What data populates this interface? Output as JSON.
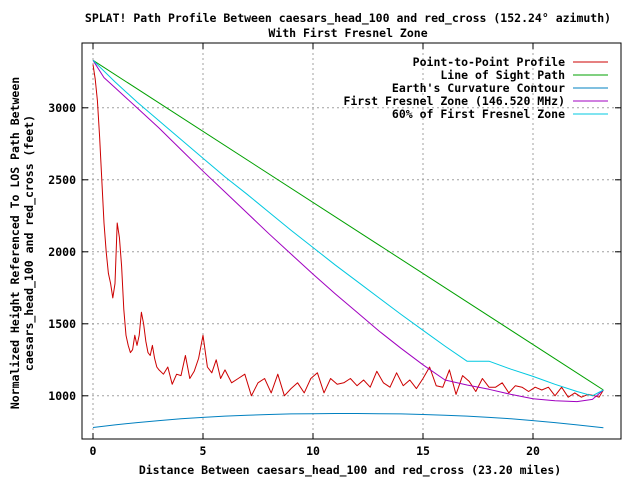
{
  "chart_data": {
    "type": "line",
    "title": "SPLAT! Path Profile Between caesars_head_100 and red_cross (152.24° azimuth)",
    "subtitle": "With First Fresnel Zone",
    "xlabel": "Distance Between caesars_head_100 and red_cross (23.20 miles)",
    "ylabel_lines": [
      "Normalized Height Referenced To LOS Path Between",
      "caesars_head_100 and red_cross (feet)"
    ],
    "xlim": [
      -0.5,
      24
    ],
    "ylim": [
      700,
      3450
    ],
    "x_ticks": [
      0,
      5,
      10,
      15,
      20
    ],
    "y_ticks": [
      1000,
      1500,
      2000,
      2500,
      3000
    ],
    "x_tick_labels": [
      "0",
      "5",
      "10",
      "15",
      "20"
    ],
    "y_tick_labels": [
      "1000",
      "1500",
      "2000",
      "2500",
      "3000"
    ],
    "grid": true,
    "legend_position": "top-right",
    "series": [
      {
        "name": "Point-to-Point Profile",
        "color": "#cc0000",
        "x": [
          0,
          0.1,
          0.2,
          0.3,
          0.4,
          0.5,
          0.6,
          0.7,
          0.8,
          0.9,
          1.0,
          1.1,
          1.2,
          1.3,
          1.4,
          1.5,
          1.6,
          1.7,
          1.8,
          1.9,
          2.0,
          2.1,
          2.2,
          2.3,
          2.4,
          2.5,
          2.6,
          2.7,
          2.8,
          2.9,
          3.0,
          3.2,
          3.4,
          3.6,
          3.8,
          4.0,
          4.2,
          4.4,
          4.6,
          4.8,
          5.0,
          5.2,
          5.4,
          5.6,
          5.8,
          6.0,
          6.3,
          6.6,
          6.9,
          7.2,
          7.5,
          7.8,
          8.1,
          8.4,
          8.7,
          9.0,
          9.3,
          9.6,
          9.9,
          10.2,
          10.5,
          10.8,
          11.1,
          11.4,
          11.7,
          12.0,
          12.3,
          12.6,
          12.9,
          13.2,
          13.5,
          13.8,
          14.1,
          14.4,
          14.7,
          15.0,
          15.3,
          15.6,
          15.9,
          16.2,
          16.5,
          16.8,
          17.1,
          17.4,
          17.7,
          18.0,
          18.3,
          18.6,
          18.9,
          19.2,
          19.5,
          19.8,
          20.1,
          20.4,
          20.7,
          21.0,
          21.3,
          21.6,
          21.9,
          22.2,
          22.5,
          22.8,
          23.0,
          23.2
        ],
        "values": [
          3300,
          3200,
          3050,
          2800,
          2500,
          2200,
          2000,
          1850,
          1780,
          1680,
          1780,
          2200,
          2100,
          1900,
          1600,
          1420,
          1350,
          1300,
          1320,
          1420,
          1350,
          1420,
          1580,
          1500,
          1380,
          1300,
          1280,
          1350,
          1260,
          1200,
          1180,
          1150,
          1200,
          1080,
          1150,
          1140,
          1280,
          1120,
          1170,
          1260,
          1420,
          1200,
          1160,
          1250,
          1120,
          1180,
          1090,
          1120,
          1150,
          1000,
          1090,
          1120,
          1020,
          1150,
          1000,
          1050,
          1090,
          1020,
          1120,
          1160,
          1020,
          1120,
          1080,
          1090,
          1120,
          1070,
          1110,
          1060,
          1170,
          1090,
          1060,
          1160,
          1070,
          1110,
          1050,
          1120,
          1200,
          1070,
          1060,
          1180,
          1010,
          1140,
          1100,
          1030,
          1120,
          1060,
          1060,
          1090,
          1020,
          1070,
          1060,
          1030,
          1060,
          1040,
          1060,
          1000,
          1060,
          990,
          1020,
          990,
          1010,
          1000,
          990,
          1040
        ]
      },
      {
        "name": "Line of Sight Path",
        "color": "#00a000",
        "x": [
          0,
          23.2
        ],
        "values": [
          3330,
          1040
        ]
      },
      {
        "name": "Earth's Curvature Contour",
        "color": "#0080c0",
        "x": [
          0,
          1,
          2,
          3,
          4,
          5,
          6,
          7,
          8,
          9,
          10,
          11,
          11.6,
          12,
          13,
          14,
          15,
          16,
          17,
          18,
          19,
          20,
          21,
          22,
          23.2
        ],
        "values": [
          780,
          798,
          814,
          828,
          840,
          850,
          859,
          865,
          870,
          874,
          876,
          877,
          877,
          877,
          876,
          874,
          870,
          865,
          859,
          850,
          840,
          828,
          814,
          798,
          778
        ]
      },
      {
        "name": "First Fresnel Zone (146.520 MHz)",
        "color": "#a000c0",
        "x": [
          0,
          0.5,
          1,
          2,
          3,
          4,
          5,
          6,
          7,
          8,
          9,
          10,
          11,
          12,
          13,
          14,
          15,
          16,
          17,
          18,
          19,
          20,
          21,
          22,
          22.7,
          23.2
        ],
        "values": [
          3330,
          3210,
          3140,
          3000,
          2860,
          2710,
          2560,
          2415,
          2270,
          2125,
          1985,
          1845,
          1710,
          1580,
          1450,
          1330,
          1215,
          1110,
          1075,
          1045,
          1010,
          980,
          965,
          960,
          975,
          1040
        ]
      },
      {
        "name": "60% of First Fresnel Zone",
        "color": "#00c8e0",
        "x": [
          0,
          1,
          2,
          3,
          4,
          5,
          6,
          7,
          8,
          9,
          10,
          11,
          12,
          13,
          14,
          15,
          16,
          17,
          18,
          19,
          20,
          21,
          22,
          22.7,
          23.2
        ],
        "values": [
          3330,
          3180,
          3040,
          2910,
          2780,
          2650,
          2520,
          2400,
          2275,
          2150,
          2030,
          1910,
          1795,
          1680,
          1565,
          1455,
          1345,
          1240,
          1240,
          1185,
          1135,
          1080,
          1030,
          1000,
          1040
        ]
      }
    ]
  }
}
